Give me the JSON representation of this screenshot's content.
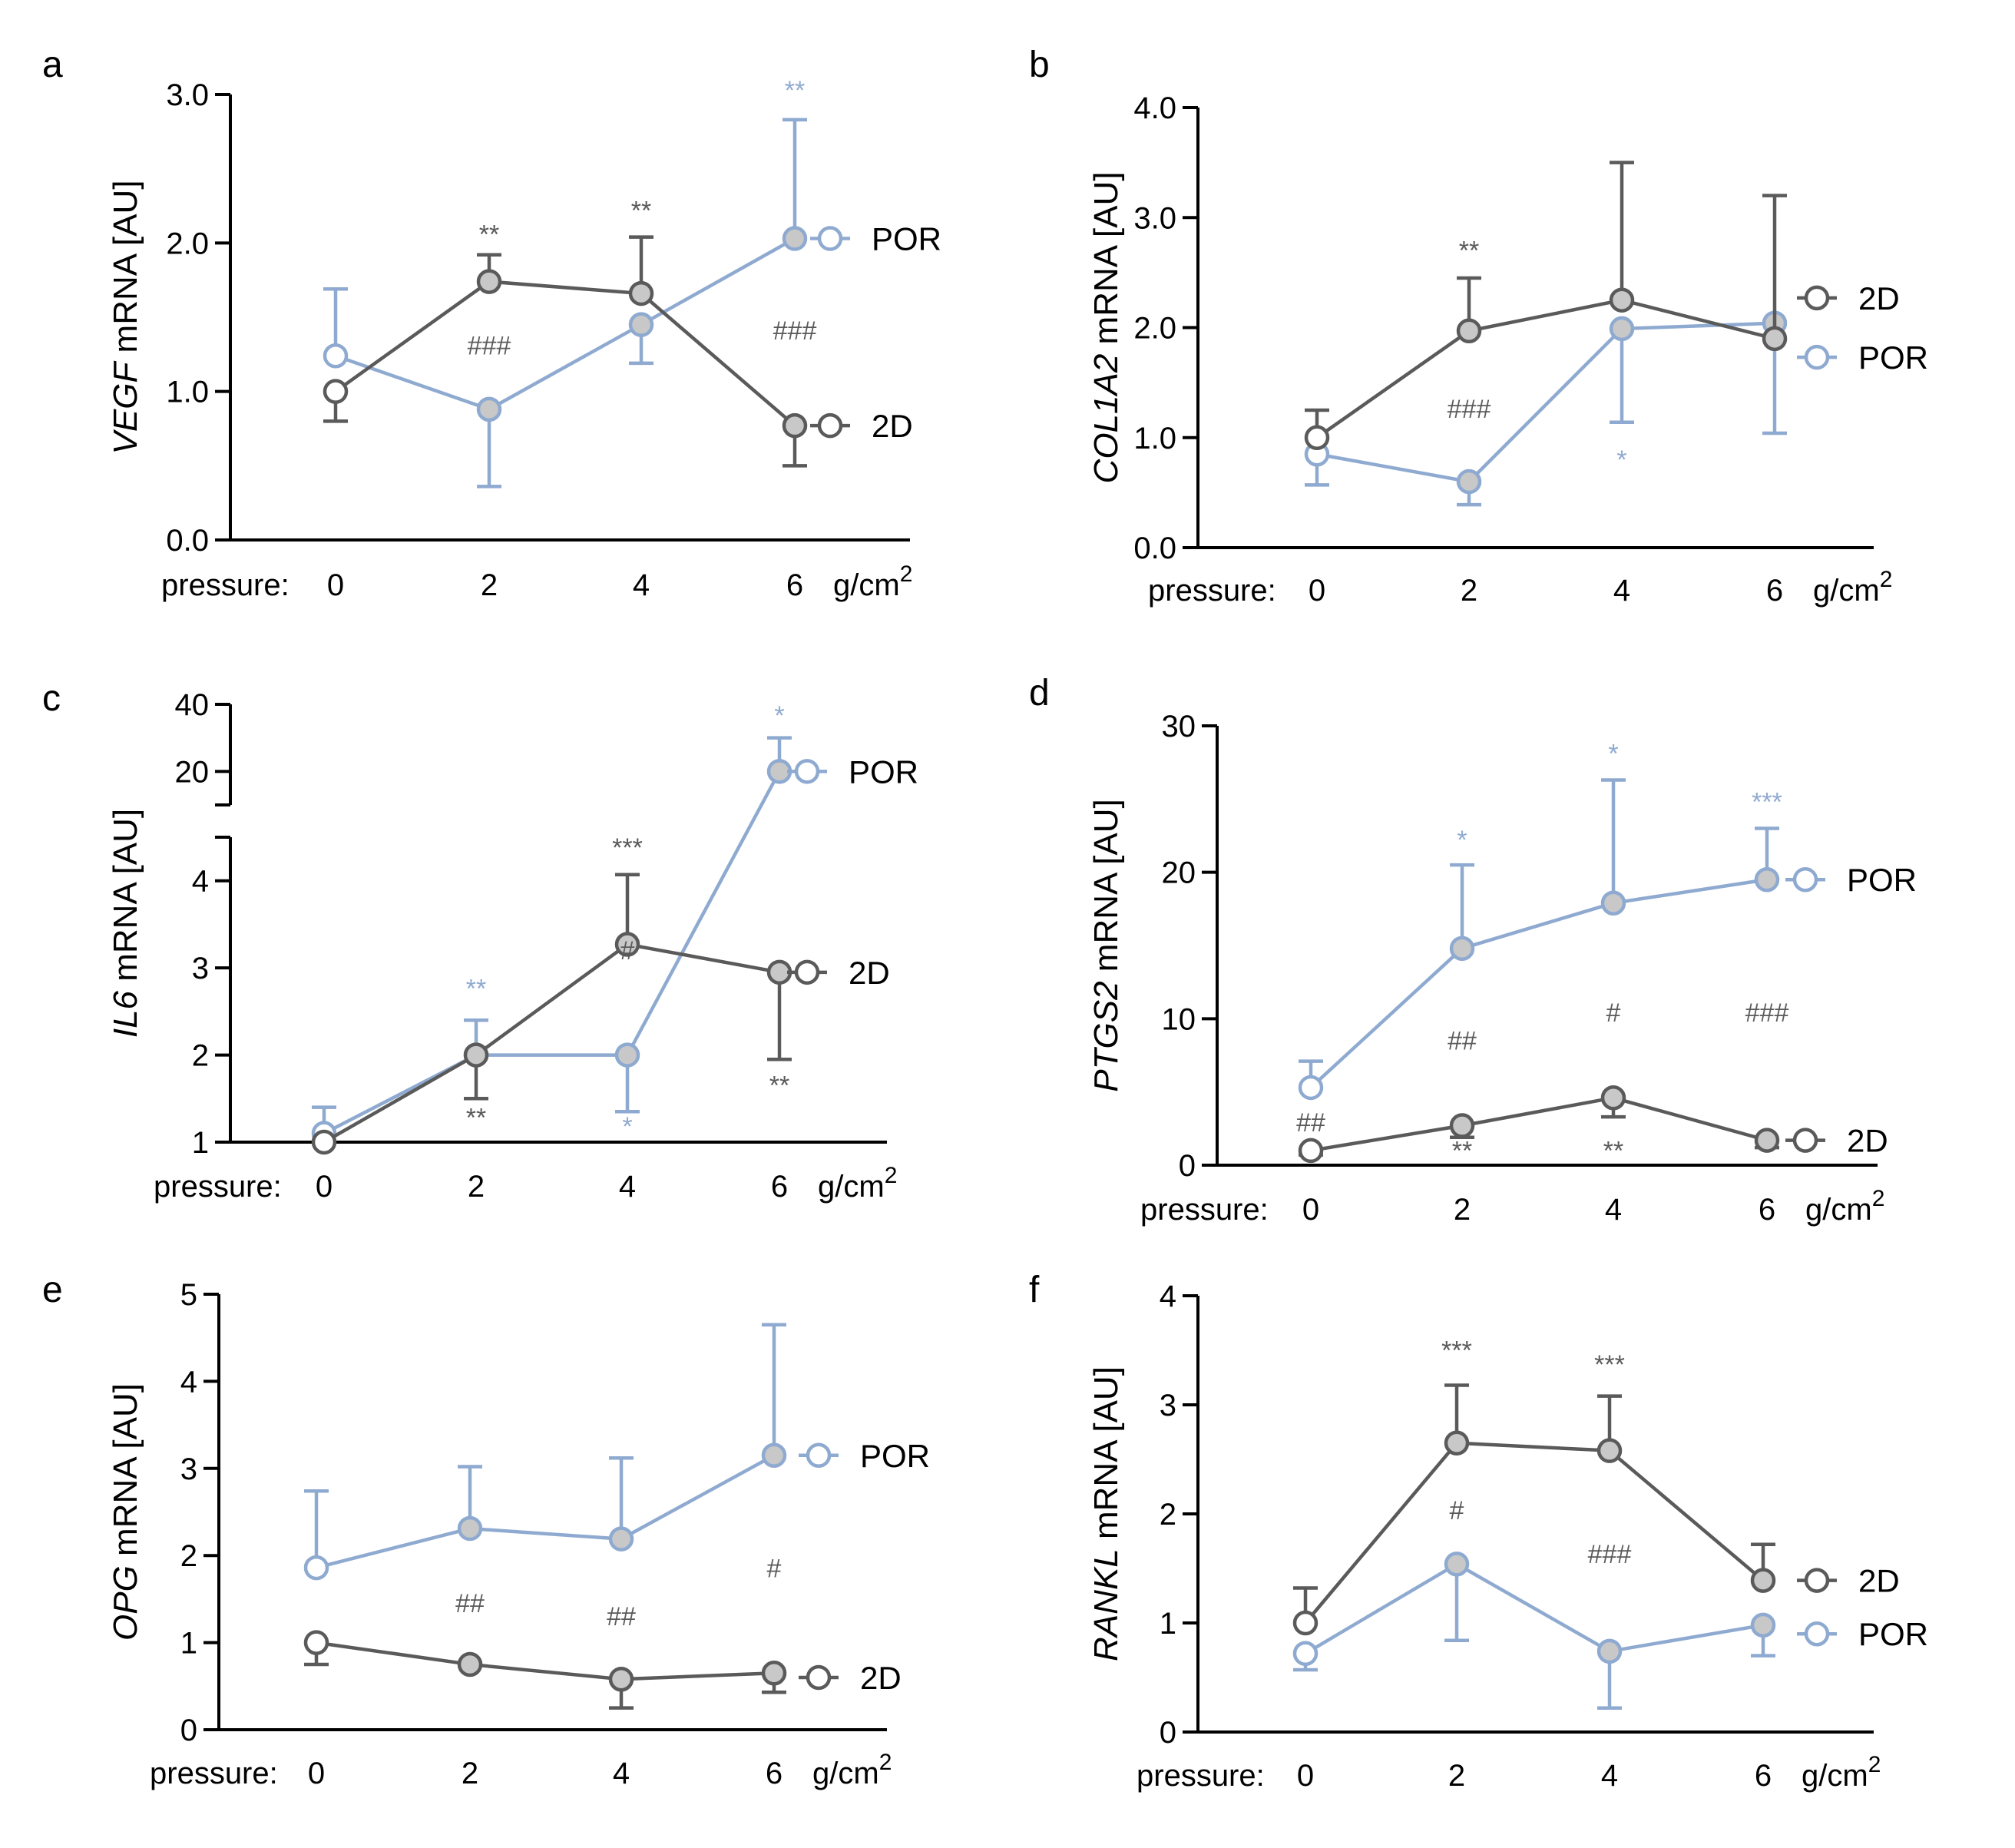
{
  "colors": {
    "POR": "#8faad0",
    "2D": "#5a5a5a",
    "fill_grey": "#c8c8c8",
    "fill_white": "#ffffff"
  },
  "chart_data": [
    {
      "panel": "a",
      "type": "line",
      "ylabel_italic": "VEGF",
      "ylabel_rest": " mRNA [AU]",
      "x_prefix": "pressure:",
      "x": [
        0,
        2,
        4,
        6
      ],
      "x_unit": "g/cm",
      "x_unit_sup": "2",
      "ylim": [
        0,
        3
      ],
      "yticks": [
        "0.0",
        "1.0",
        "2.0",
        "3.0"
      ],
      "series": [
        {
          "name": "POR",
          "values": [
            1.24,
            0.88,
            1.45,
            2.03
          ],
          "err": [
            0.45,
            0.52,
            0.26,
            0.8
          ],
          "err_dir": [
            "up",
            "down",
            "down",
            "up"
          ]
        },
        {
          "name": "2D",
          "values": [
            1.0,
            1.74,
            1.66,
            0.77
          ],
          "err": [
            0.2,
            0.18,
            0.38,
            0.27
          ],
          "err_dir": [
            "down",
            "up",
            "up",
            "down"
          ]
        }
      ],
      "annotations": [
        {
          "x": 2,
          "y": 2.0,
          "text": "**",
          "color": "2D"
        },
        {
          "x": 4,
          "y": 2.16,
          "text": "**",
          "color": "2D"
        },
        {
          "x": 6,
          "y": 2.97,
          "text": "**",
          "color": "POR"
        },
        {
          "x": 2,
          "y": 1.25,
          "text": "###",
          "color": "2D"
        },
        {
          "x": 6,
          "y": 1.35,
          "text": "###",
          "color": "2D"
        }
      ],
      "legend": [
        {
          "name": "POR",
          "y": 2.03
        },
        {
          "name": "2D",
          "y": 0.77
        }
      ]
    },
    {
      "panel": "b",
      "type": "line",
      "ylabel_italic": "COL1A2",
      "ylabel_rest": " mRNA [AU]",
      "x_prefix": "pressure:",
      "x": [
        0,
        2,
        4,
        6
      ],
      "x_unit": "g/cm",
      "x_unit_sup": "2",
      "ylim": [
        0,
        4
      ],
      "yticks": [
        "0.0",
        "1.0",
        "2.0",
        "3.0",
        "4.0"
      ],
      "series": [
        {
          "name": "POR",
          "values": [
            0.85,
            0.6,
            1.99,
            2.04
          ],
          "err": [
            0.28,
            0.21,
            0.85,
            1.0
          ],
          "err_dir": [
            "down",
            "down",
            "down",
            "down"
          ]
        },
        {
          "name": "2D",
          "values": [
            1.0,
            1.97,
            2.25,
            1.9
          ],
          "err": [
            0.25,
            0.48,
            1.25,
            1.3
          ],
          "err_dir": [
            "up",
            "up",
            "up",
            "up"
          ]
        }
      ],
      "annotations": [
        {
          "x": 2,
          "y": 2.62,
          "text": "**",
          "color": "2D"
        },
        {
          "x": 2,
          "y": 1.18,
          "text": "###",
          "color": "2D"
        },
        {
          "x": 4,
          "y": 0.72,
          "text": "*",
          "color": "POR"
        }
      ],
      "legend": [
        {
          "name": "2D",
          "y": 2.27
        },
        {
          "name": "POR",
          "y": 1.73
        }
      ]
    },
    {
      "panel": "c",
      "type": "line",
      "broken_axis": true,
      "ylabel_italic": "IL6",
      "ylabel_rest": " mRNA [AU]",
      "x_prefix": "pressure:",
      "x": [
        0,
        2,
        4,
        6
      ],
      "x_unit": "g/cm",
      "x_unit_sup": "2",
      "ylim_lower": [
        1,
        4.5
      ],
      "ylim_upper": [
        10,
        40
      ],
      "yticks": [
        "1",
        "2",
        "3",
        "4",
        "20",
        "40"
      ],
      "series": [
        {
          "name": "POR",
          "values": [
            1.1,
            2.0,
            2.0,
            20
          ],
          "err": [
            0.3,
            0.4,
            0.65,
            10
          ],
          "err_dir": [
            "up",
            "up",
            "down",
            "up"
          ]
        },
        {
          "name": "2D",
          "values": [
            1.0,
            2.0,
            3.27,
            2.95
          ],
          "err": [
            0.0,
            0.5,
            0.8,
            1.0
          ],
          "err_dir": [
            "down",
            "down",
            "up",
            "down"
          ]
        }
      ],
      "annotations": [
        {
          "x": 2,
          "y": 2.66,
          "text": "**",
          "color": "POR"
        },
        {
          "x": 2,
          "y": 1.18,
          "text": "**",
          "color": "2D"
        },
        {
          "x": 4,
          "y": 4.28,
          "text": "***",
          "color": "2D"
        },
        {
          "x": 4,
          "y": 3.1,
          "text": "#",
          "color": "2D"
        },
        {
          "x": 4,
          "y": 1.08,
          "text": "*",
          "color": "POR"
        },
        {
          "x": 6,
          "y": 1.55,
          "text": "**",
          "color": "2D"
        },
        {
          "x": 6,
          "y": 34,
          "text": "*",
          "color": "POR"
        }
      ],
      "legend": [
        {
          "name": "POR",
          "y": 20
        },
        {
          "name": "2D",
          "y": 2.95
        }
      ]
    },
    {
      "panel": "d",
      "type": "line",
      "ylabel_italic": "PTGS2",
      "ylabel_rest": " mRNA [AU]",
      "x_prefix": "pressure:",
      "x": [
        0,
        2,
        4,
        6
      ],
      "x_unit": "g/cm",
      "x_unit_sup": "2",
      "ylim": [
        0,
        30
      ],
      "yticks": [
        "0",
        "10",
        "20",
        "30"
      ],
      "series": [
        {
          "name": "POR",
          "values": [
            5.3,
            14.8,
            17.9,
            19.5
          ],
          "err": [
            1.8,
            5.7,
            8.4,
            3.5
          ],
          "err_dir": [
            "up",
            "up",
            "up",
            "up"
          ]
        },
        {
          "name": "2D",
          "values": [
            1.0,
            2.7,
            4.6,
            1.7
          ],
          "err": [
            0.3,
            0.8,
            1.3,
            0.5
          ],
          "err_dir": [
            "down",
            "down",
            "down",
            "down"
          ]
        }
      ],
      "annotations": [
        {
          "x": 2,
          "y": 21.6,
          "text": "*",
          "color": "POR"
        },
        {
          "x": 4,
          "y": 27.5,
          "text": "*",
          "color": "POR"
        },
        {
          "x": 6,
          "y": 24.2,
          "text": "***",
          "color": "POR"
        },
        {
          "x": 2,
          "y": 7.9,
          "text": "##",
          "color": "2D"
        },
        {
          "x": 4,
          "y": 9.8,
          "text": "#",
          "color": "2D"
        },
        {
          "x": 6,
          "y": 9.8,
          "text": "###",
          "color": "2D"
        },
        {
          "x": 0,
          "y": 2.3,
          "text": "##",
          "color": "2D"
        },
        {
          "x": 2,
          "y": 0.4,
          "text": "**",
          "color": "2D"
        },
        {
          "x": 4,
          "y": 0.4,
          "text": "**",
          "color": "2D"
        }
      ],
      "legend": [
        {
          "name": "POR",
          "y": 19.5
        },
        {
          "name": "2D",
          "y": 1.7
        }
      ]
    },
    {
      "panel": "e",
      "type": "line",
      "ylabel_italic": "OPG",
      "ylabel_rest": " mRNA [AU]",
      "x_prefix": "pressure:",
      "x": [
        0,
        2,
        4,
        6
      ],
      "x_unit": "g/cm",
      "x_unit_sup": "2",
      "ylim": [
        0,
        5
      ],
      "yticks": [
        "0",
        "1",
        "2",
        "3",
        "4",
        "5"
      ],
      "series": [
        {
          "name": "POR",
          "values": [
            1.86,
            2.31,
            2.19,
            3.15
          ],
          "err": [
            0.88,
            0.71,
            0.93,
            1.5
          ],
          "err_dir": [
            "up",
            "up",
            "up",
            "up"
          ]
        },
        {
          "name": "2D",
          "values": [
            1.0,
            0.75,
            0.58,
            0.65
          ],
          "err": [
            0.25,
            0.0,
            0.33,
            0.22
          ],
          "err_dir": [
            "down",
            "down",
            "down",
            "down"
          ]
        }
      ],
      "annotations": [
        {
          "x": 2,
          "y": 1.35,
          "text": "##",
          "color": "2D"
        },
        {
          "x": 4,
          "y": 1.2,
          "text": "##",
          "color": "2D"
        },
        {
          "x": 6,
          "y": 1.75,
          "text": "#",
          "color": "2D"
        }
      ],
      "legend": [
        {
          "name": "POR",
          "y": 3.15
        },
        {
          "name": "2D",
          "y": 0.6
        }
      ]
    },
    {
      "panel": "f",
      "type": "line",
      "ylabel_italic": "RANKL",
      "ylabel_rest": " mRNA [AU]",
      "x_prefix": "pressure:",
      "x": [
        0,
        2,
        4,
        6
      ],
      "x_unit": "g/cm",
      "x_unit_sup": "2",
      "ylim": [
        0,
        4
      ],
      "yticks": [
        "0",
        "1",
        "2",
        "3",
        "4"
      ],
      "series": [
        {
          "name": "POR",
          "values": [
            0.72,
            1.54,
            0.74,
            0.98
          ],
          "err": [
            0.15,
            0.7,
            0.52,
            0.28
          ],
          "err_dir": [
            "down",
            "down",
            "down",
            "down"
          ]
        },
        {
          "name": "2D",
          "values": [
            1.0,
            2.65,
            2.58,
            1.39
          ],
          "err": [
            0.32,
            0.53,
            0.5,
            0.33
          ],
          "err_dir": [
            "up",
            "up",
            "up",
            "up"
          ]
        }
      ],
      "annotations": [
        {
          "x": 2,
          "y": 3.42,
          "text": "***",
          "color": "2D"
        },
        {
          "x": 4,
          "y": 3.29,
          "text": "***",
          "color": "2D"
        },
        {
          "x": 2,
          "y": 1.95,
          "text": "#",
          "color": "2D"
        },
        {
          "x": 4,
          "y": 1.55,
          "text": "###",
          "color": "2D"
        }
      ],
      "legend": [
        {
          "name": "2D",
          "y": 1.39
        },
        {
          "name": "POR",
          "y": 0.9
        }
      ]
    }
  ]
}
